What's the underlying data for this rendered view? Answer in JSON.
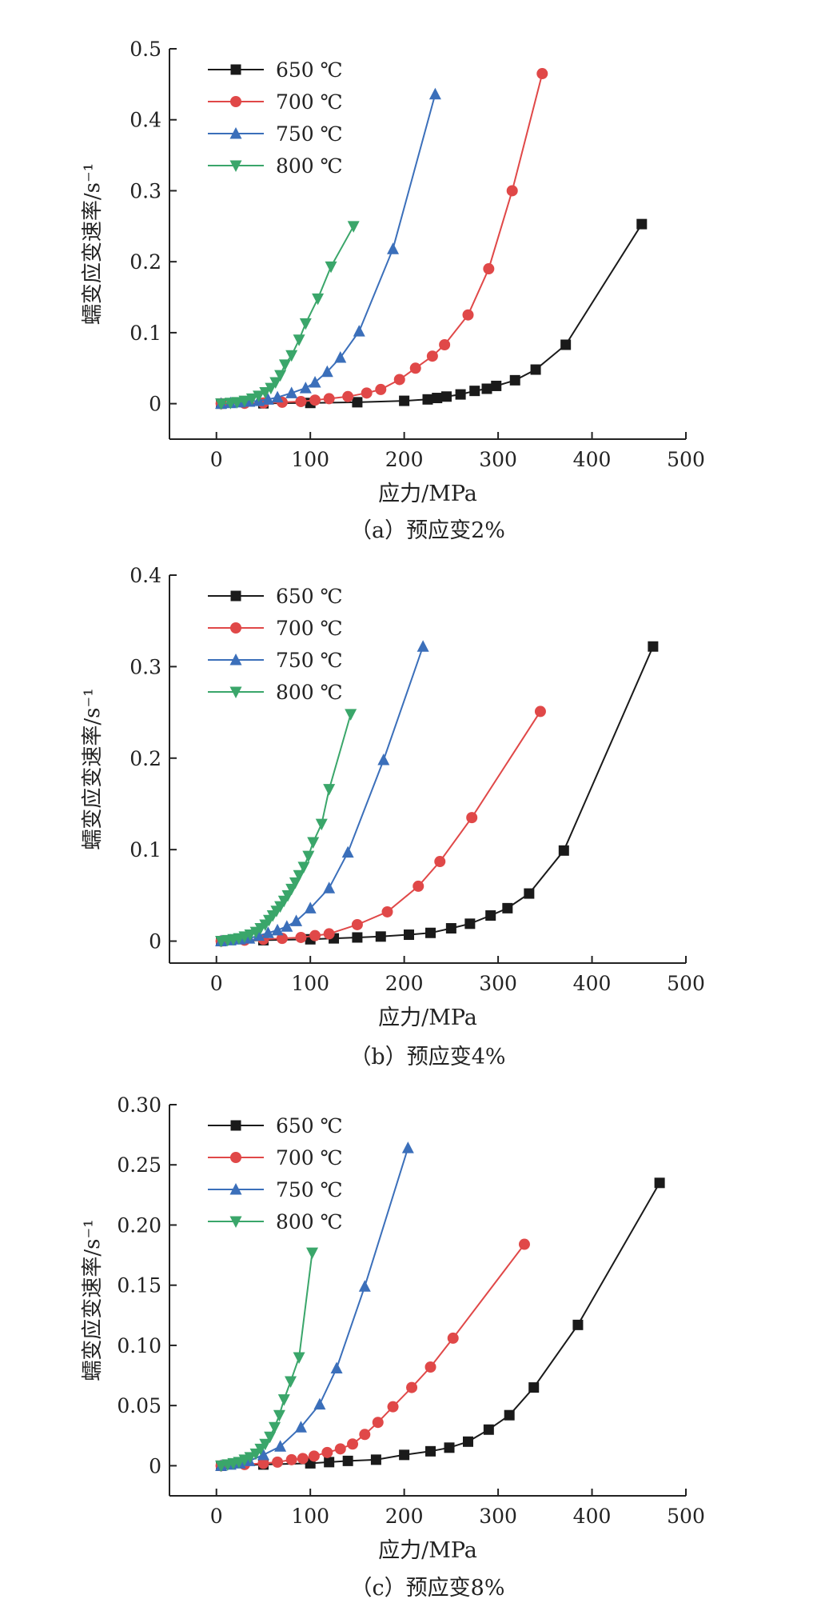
{
  "chart_data": [
    {
      "type": "line",
      "caption": "（a）预应变2%",
      "xlabel": "应力/MPa",
      "ylabel": "蠕变应变速率/s⁻¹",
      "xlim": [
        -50,
        500
      ],
      "ylim": [
        -0.05,
        0.5
      ],
      "xticks": [
        0,
        100,
        200,
        300,
        400,
        500
      ],
      "yticks": [
        0,
        0.1,
        0.2,
        0.3,
        0.4,
        0.5
      ],
      "ytick_labels": [
        "0",
        "0.1",
        "0.2",
        "0.3",
        "0.4",
        "0.5"
      ],
      "grid": false,
      "legend_position": "top-left",
      "series": [
        {
          "name": "650 ℃",
          "color": "#1a1a1a",
          "marker": "square",
          "x": [
            5,
            50,
            100,
            150,
            200,
            225,
            235,
            245,
            260,
            275,
            288,
            298,
            318,
            340,
            372,
            453
          ],
          "y": [
            0,
            0.0005,
            0.001,
            0.002,
            0.004,
            0.006,
            0.008,
            0.01,
            0.013,
            0.018,
            0.021,
            0.025,
            0.033,
            0.048,
            0.083,
            0.253
          ]
        },
        {
          "name": "700 ℃",
          "color": "#e04848",
          "marker": "circle",
          "x": [
            5,
            30,
            50,
            70,
            90,
            105,
            120,
            140,
            160,
            175,
            195,
            212,
            230,
            243,
            268,
            290,
            315,
            347
          ],
          "y": [
            0,
            0.0005,
            0.001,
            0.002,
            0.003,
            0.005,
            0.007,
            0.01,
            0.015,
            0.02,
            0.034,
            0.05,
            0.067,
            0.083,
            0.125,
            0.19,
            0.3,
            0.465
          ]
        },
        {
          "name": "750 ℃",
          "color": "#3b6fba",
          "marker": "triangle-up",
          "x": [
            5,
            15,
            25,
            35,
            45,
            55,
            65,
            80,
            95,
            105,
            118,
            132,
            152,
            188,
            233
          ],
          "y": [
            0,
            0.001,
            0.002,
            0.003,
            0.004,
            0.006,
            0.009,
            0.015,
            0.022,
            0.03,
            0.045,
            0.065,
            0.102,
            0.218,
            0.436
          ]
        },
        {
          "name": "800 ℃",
          "color": "#3aa66a",
          "marker": "triangle-down",
          "x": [
            5,
            15,
            22,
            30,
            38,
            45,
            52,
            58,
            63,
            68,
            73,
            80,
            88,
            95,
            108,
            122,
            146
          ],
          "y": [
            0,
            0.001,
            0.002,
            0.004,
            0.007,
            0.011,
            0.016,
            0.022,
            0.03,
            0.04,
            0.055,
            0.068,
            0.09,
            0.113,
            0.148,
            0.193,
            0.25
          ]
        }
      ]
    },
    {
      "type": "line",
      "caption": "（b）预应变4%",
      "xlabel": "应力/MPa",
      "ylabel": "蠕变应变速率/s⁻¹",
      "xlim": [
        -50,
        500
      ],
      "ylim": [
        -0.024,
        0.4
      ],
      "xticks": [
        0,
        100,
        200,
        300,
        400,
        500
      ],
      "yticks": [
        0,
        0.1,
        0.2,
        0.3,
        0.4
      ],
      "ytick_labels": [
        "0",
        "0.1",
        "0.2",
        "0.3",
        "0.4"
      ],
      "grid": false,
      "legend_position": "top-left",
      "series": [
        {
          "name": "650 ℃",
          "color": "#1a1a1a",
          "marker": "square",
          "x": [
            5,
            50,
            100,
            125,
            150,
            175,
            205,
            228,
            250,
            270,
            292,
            310,
            333,
            370,
            465
          ],
          "y": [
            0,
            0.001,
            0.002,
            0.003,
            0.004,
            0.005,
            0.007,
            0.009,
            0.014,
            0.019,
            0.028,
            0.036,
            0.052,
            0.099,
            0.322
          ]
        },
        {
          "name": "700 ℃",
          "color": "#e04848",
          "marker": "circle",
          "x": [
            5,
            30,
            50,
            70,
            90,
            105,
            120,
            150,
            182,
            215,
            238,
            272,
            345
          ],
          "y": [
            0,
            0.001,
            0.002,
            0.003,
            0.004,
            0.006,
            0.008,
            0.018,
            0.032,
            0.06,
            0.087,
            0.135,
            0.251
          ]
        },
        {
          "name": "750 ℃",
          "color": "#3b6fba",
          "marker": "triangle-up",
          "x": [
            5,
            15,
            25,
            35,
            45,
            55,
            65,
            75,
            85,
            100,
            120,
            140,
            178,
            220
          ],
          "y": [
            0,
            0.001,
            0.002,
            0.003,
            0.006,
            0.009,
            0.012,
            0.016,
            0.022,
            0.036,
            0.058,
            0.097,
            0.198,
            0.322
          ]
        },
        {
          "name": "800 ℃",
          "color": "#3aa66a",
          "marker": "triangle-down",
          "x": [
            5,
            12,
            18,
            24,
            30,
            36,
            42,
            47,
            52,
            56,
            60,
            64,
            68,
            72,
            76,
            80,
            84,
            88,
            93,
            98,
            103,
            112,
            120,
            143
          ],
          "y": [
            0,
            0.001,
            0.002,
            0.003,
            0.005,
            0.007,
            0.01,
            0.014,
            0.018,
            0.023,
            0.028,
            0.033,
            0.038,
            0.044,
            0.05,
            0.057,
            0.064,
            0.072,
            0.081,
            0.093,
            0.108,
            0.128,
            0.166,
            0.248
          ]
        }
      ]
    },
    {
      "type": "line",
      "caption": "（c）预应变8%",
      "xlabel": "应力/MPa",
      "ylabel": "蠕变应变速率/s⁻¹",
      "xlim": [
        -50,
        500
      ],
      "ylim": [
        -0.025,
        0.3
      ],
      "xticks": [
        0,
        100,
        200,
        300,
        400,
        500
      ],
      "yticks": [
        0,
        0.05,
        0.1,
        0.15,
        0.2,
        0.25,
        0.3
      ],
      "ytick_labels": [
        "0",
        "0.05",
        "0.10",
        "0.15",
        "0.20",
        "0.25",
        "0.30"
      ],
      "grid": false,
      "legend_position": "top-left",
      "series": [
        {
          "name": "650 ℃",
          "color": "#1a1a1a",
          "marker": "square",
          "x": [
            5,
            50,
            100,
            120,
            140,
            170,
            200,
            228,
            248,
            268,
            290,
            312,
            338,
            385,
            472
          ],
          "y": [
            0,
            0.001,
            0.002,
            0.003,
            0.004,
            0.005,
            0.009,
            0.012,
            0.015,
            0.02,
            0.03,
            0.042,
            0.065,
            0.117,
            0.235
          ]
        },
        {
          "name": "700 ℃",
          "color": "#e04848",
          "marker": "circle",
          "x": [
            5,
            30,
            50,
            65,
            80,
            92,
            104,
            118,
            132,
            145,
            158,
            172,
            188,
            208,
            228,
            252,
            328
          ],
          "y": [
            0,
            0.001,
            0.002,
            0.003,
            0.005,
            0.006,
            0.008,
            0.011,
            0.014,
            0.018,
            0.026,
            0.036,
            0.049,
            0.065,
            0.082,
            0.106,
            0.184
          ]
        },
        {
          "name": "750 ℃",
          "color": "#3b6fba",
          "marker": "triangle-up",
          "x": [
            5,
            15,
            25,
            35,
            50,
            68,
            90,
            110,
            128,
            158,
            204
          ],
          "y": [
            0,
            0.001,
            0.002,
            0.004,
            0.009,
            0.016,
            0.032,
            0.051,
            0.081,
            0.149,
            0.264
          ]
        },
        {
          "name": "800 ℃",
          "color": "#3aa66a",
          "marker": "triangle-down",
          "x": [
            5,
            12,
            18,
            24,
            30,
            36,
            42,
            47,
            52,
            57,
            62,
            67,
            72,
            79,
            88,
            102
          ],
          "y": [
            0,
            0.001,
            0.002,
            0.003,
            0.005,
            0.007,
            0.01,
            0.014,
            0.018,
            0.024,
            0.032,
            0.042,
            0.055,
            0.07,
            0.09,
            0.177
          ]
        }
      ]
    }
  ]
}
